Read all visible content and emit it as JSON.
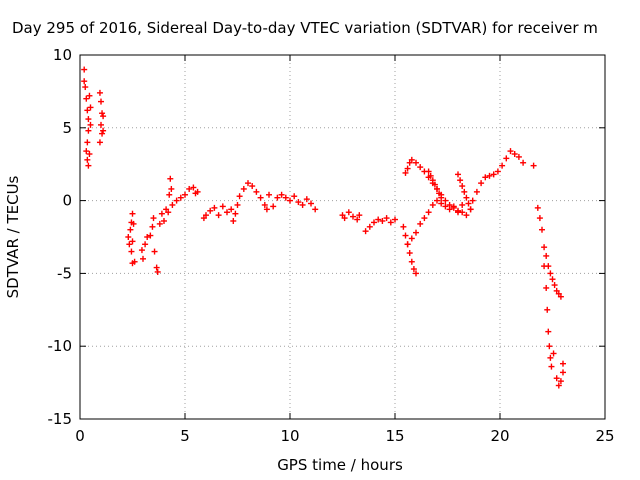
{
  "chart_data": {
    "type": "scatter",
    "title": "Day 295 of 2016, Sidereal Day-to-day VTEC variation (SDTVAR) for receiver m",
    "xlabel": "GPS time / hours",
    "ylabel": "SDTVAR / TECUs",
    "xlim": [
      0,
      25
    ],
    "ylim": [
      -15,
      10
    ],
    "x_ticks": [
      0,
      5,
      10,
      15,
      20,
      25
    ],
    "x_tick_labels": [
      "0",
      "5",
      "10",
      "15",
      "20",
      "25"
    ],
    "y_ticks": [
      -15,
      -10,
      -5,
      0,
      5,
      10
    ],
    "y_tick_labels": [
      "-15",
      "-10",
      "-5",
      "0",
      "5",
      "10"
    ],
    "grid": true,
    "marker": "+",
    "series": [
      {
        "name": "SDTVAR",
        "color": "#ff0000",
        "points": [
          [
            0.2,
            9.0
          ],
          [
            0.2,
            8.2
          ],
          [
            0.25,
            7.8
          ],
          [
            0.3,
            7.0
          ],
          [
            0.35,
            6.2
          ],
          [
            0.4,
            5.6
          ],
          [
            0.4,
            4.8
          ],
          [
            0.35,
            4.0
          ],
          [
            0.3,
            3.4
          ],
          [
            0.35,
            2.8
          ],
          [
            0.4,
            2.4
          ],
          [
            0.45,
            3.2
          ],
          [
            0.5,
            5.2
          ],
          [
            0.5,
            6.4
          ],
          [
            0.45,
            7.2
          ],
          [
            0.95,
            7.4
          ],
          [
            1.0,
            6.8
          ],
          [
            1.05,
            6.0
          ],
          [
            1.0,
            5.2
          ],
          [
            1.05,
            4.6
          ],
          [
            0.95,
            4.0
          ],
          [
            1.1,
            4.8
          ],
          [
            1.1,
            5.8
          ],
          [
            2.3,
            -2.5
          ],
          [
            2.35,
            -3.0
          ],
          [
            2.4,
            -2.0
          ],
          [
            2.45,
            -1.5
          ],
          [
            2.5,
            -0.9
          ],
          [
            2.55,
            -1.6
          ],
          [
            2.5,
            -2.8
          ],
          [
            2.45,
            -3.5
          ],
          [
            2.5,
            -4.3
          ],
          [
            2.6,
            -4.2
          ],
          [
            2.95,
            -3.4
          ],
          [
            3.0,
            -4.0
          ],
          [
            3.1,
            -3.0
          ],
          [
            3.2,
            -2.5
          ],
          [
            3.35,
            -2.4
          ],
          [
            3.45,
            -1.8
          ],
          [
            3.5,
            -1.2
          ],
          [
            3.55,
            -3.5
          ],
          [
            3.65,
            -4.6
          ],
          [
            3.7,
            -4.9
          ],
          [
            3.8,
            -1.6
          ],
          [
            3.9,
            -0.9
          ],
          [
            4.0,
            -1.4
          ],
          [
            4.1,
            -0.6
          ],
          [
            4.2,
            -0.8
          ],
          [
            4.25,
            0.4
          ],
          [
            4.3,
            1.5
          ],
          [
            4.35,
            0.8
          ],
          [
            4.4,
            -0.3
          ],
          [
            4.6,
            0.0
          ],
          [
            4.8,
            0.2
          ],
          [
            5.0,
            0.4
          ],
          [
            5.2,
            0.8
          ],
          [
            5.4,
            0.9
          ],
          [
            5.5,
            0.5
          ],
          [
            5.6,
            0.6
          ],
          [
            5.9,
            -1.2
          ],
          [
            6.0,
            -1.0
          ],
          [
            6.2,
            -0.7
          ],
          [
            6.4,
            -0.5
          ],
          [
            6.6,
            -1.0
          ],
          [
            6.8,
            -0.4
          ],
          [
            7.0,
            -0.8
          ],
          [
            7.2,
            -0.6
          ],
          [
            7.3,
            -1.4
          ],
          [
            7.4,
            -0.9
          ],
          [
            7.5,
            -0.3
          ],
          [
            7.6,
            0.3
          ],
          [
            7.8,
            0.8
          ],
          [
            8.0,
            1.2
          ],
          [
            8.2,
            1.0
          ],
          [
            8.4,
            0.6
          ],
          [
            8.6,
            0.2
          ],
          [
            8.8,
            -0.3
          ],
          [
            8.9,
            -0.6
          ],
          [
            9.0,
            0.4
          ],
          [
            9.2,
            -0.4
          ],
          [
            9.4,
            0.2
          ],
          [
            9.6,
            0.4
          ],
          [
            9.8,
            0.2
          ],
          [
            10.0,
            0.0
          ],
          [
            10.2,
            0.3
          ],
          [
            10.4,
            -0.1
          ],
          [
            10.6,
            -0.3
          ],
          [
            10.8,
            0.1
          ],
          [
            11.0,
            -0.2
          ],
          [
            11.2,
            -0.6
          ],
          [
            12.5,
            -1.0
          ],
          [
            12.6,
            -1.2
          ],
          [
            12.8,
            -0.8
          ],
          [
            13.0,
            -1.1
          ],
          [
            13.2,
            -1.3
          ],
          [
            13.3,
            -1.0
          ],
          [
            13.6,
            -2.1
          ],
          [
            13.8,
            -1.8
          ],
          [
            14.0,
            -1.5
          ],
          [
            14.2,
            -1.3
          ],
          [
            14.4,
            -1.4
          ],
          [
            14.6,
            -1.2
          ],
          [
            14.8,
            -1.5
          ],
          [
            15.0,
            -1.3
          ],
          [
            15.4,
            -1.8
          ],
          [
            15.5,
            -2.4
          ],
          [
            15.6,
            -3.0
          ],
          [
            15.7,
            -3.6
          ],
          [
            15.8,
            -4.2
          ],
          [
            15.9,
            -4.7
          ],
          [
            16.0,
            -5.0
          ],
          [
            15.5,
            1.9
          ],
          [
            15.6,
            2.2
          ],
          [
            15.7,
            2.6
          ],
          [
            15.8,
            2.8
          ],
          [
            16.0,
            2.6
          ],
          [
            16.2,
            2.3
          ],
          [
            16.4,
            2.0
          ],
          [
            16.6,
            1.6
          ],
          [
            16.8,
            1.2
          ],
          [
            17.0,
            0.8
          ],
          [
            17.2,
            0.4
          ],
          [
            17.4,
            0.0
          ],
          [
            17.6,
            -0.3
          ],
          [
            17.8,
            -0.5
          ],
          [
            18.0,
            -0.7
          ],
          [
            18.2,
            -0.8
          ],
          [
            18.4,
            -1.0
          ],
          [
            18.6,
            -0.6
          ],
          [
            15.6,
            -3.0
          ],
          [
            15.8,
            -2.6
          ],
          [
            16.0,
            -2.2
          ],
          [
            16.2,
            -1.6
          ],
          [
            16.4,
            -1.2
          ],
          [
            16.6,
            -0.8
          ],
          [
            16.8,
            -0.3
          ],
          [
            17.0,
            0.0
          ],
          [
            17.2,
            -0.2
          ],
          [
            17.4,
            -0.4
          ],
          [
            17.6,
            -0.6
          ],
          [
            17.8,
            -0.4
          ],
          [
            18.0,
            -0.8
          ],
          [
            18.2,
            -0.3
          ],
          [
            16.6,
            2.0
          ],
          [
            16.7,
            1.7
          ],
          [
            16.8,
            1.4
          ],
          [
            16.9,
            1.1
          ],
          [
            17.0,
            0.8
          ],
          [
            17.1,
            0.5
          ],
          [
            17.2,
            0.2
          ],
          [
            18.0,
            1.8
          ],
          [
            18.1,
            1.4
          ],
          [
            18.2,
            1.0
          ],
          [
            18.3,
            0.6
          ],
          [
            18.4,
            0.2
          ],
          [
            18.5,
            -0.2
          ],
          [
            18.6,
            -0.6
          ],
          [
            18.7,
            0.0
          ],
          [
            18.9,
            0.6
          ],
          [
            19.1,
            1.2
          ],
          [
            19.3,
            1.6
          ],
          [
            19.5,
            1.7
          ],
          [
            19.7,
            1.8
          ],
          [
            19.9,
            2.0
          ],
          [
            20.1,
            2.4
          ],
          [
            20.3,
            2.9
          ],
          [
            20.5,
            3.4
          ],
          [
            20.7,
            3.2
          ],
          [
            20.9,
            3.0
          ],
          [
            21.1,
            2.6
          ],
          [
            21.6,
            2.4
          ],
          [
            21.8,
            -0.5
          ],
          [
            21.9,
            -1.2
          ],
          [
            22.0,
            -2.0
          ],
          [
            22.1,
            -3.2
          ],
          [
            22.2,
            -3.8
          ],
          [
            22.3,
            -4.5
          ],
          [
            22.4,
            -5.0
          ],
          [
            22.5,
            -5.4
          ],
          [
            22.6,
            -5.8
          ],
          [
            22.7,
            -6.2
          ],
          [
            22.8,
            -6.4
          ],
          [
            22.9,
            -6.6
          ],
          [
            22.1,
            -4.5
          ],
          [
            22.2,
            -6.0
          ],
          [
            22.25,
            -7.5
          ],
          [
            22.3,
            -9.0
          ],
          [
            22.35,
            -10.0
          ],
          [
            22.4,
            -10.8
          ],
          [
            22.45,
            -11.4
          ],
          [
            22.55,
            -10.5
          ],
          [
            22.7,
            -12.2
          ],
          [
            22.8,
            -12.7
          ],
          [
            22.9,
            -12.4
          ],
          [
            23.0,
            -11.8
          ],
          [
            23.0,
            -11.2
          ]
        ]
      }
    ]
  }
}
